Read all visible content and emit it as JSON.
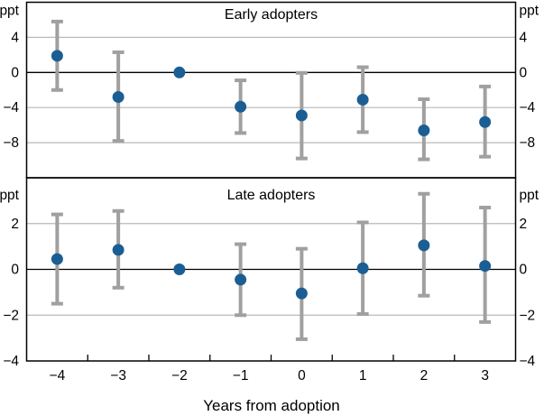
{
  "xlabel": "Years from adoption",
  "x_tick_labels": [
    "-4",
    "-3",
    "-2",
    "-1",
    "0",
    "1",
    "2",
    "3"
  ],
  "colors": {
    "dot": "#1b5e94",
    "error_bar": "#a0a0a0",
    "gridline": "#b9b9b9",
    "axis": "#000000",
    "background": "#ffffff"
  },
  "chart_data": [
    {
      "type": "scatter",
      "title": "Early adopters",
      "unit_label": "ppt",
      "x": [
        -4,
        -3,
        -2,
        -1,
        0,
        1,
        2,
        3
      ],
      "y": [
        1.9,
        -2.8,
        0,
        -3.9,
        -4.9,
        -3.1,
        -6.6,
        -5.65
      ],
      "ci_high": [
        5.8,
        2.3,
        null,
        -0.9,
        -0.05,
        0.6,
        -3.05,
        -1.6
      ],
      "ci_low": [
        -2.0,
        -7.8,
        null,
        -6.9,
        -9.8,
        -6.8,
        -9.9,
        -9.6
      ],
      "ylim": [
        -12,
        8
      ],
      "yticks": [
        4,
        0,
        -4,
        -8
      ],
      "ytick_labels": [
        "4",
        "0",
        "-4",
        "-8"
      ],
      "grid": true,
      "legend": "none"
    },
    {
      "type": "scatter",
      "title": "Late adopters",
      "unit_label": "ppt",
      "x": [
        -4,
        -3,
        -2,
        -1,
        0,
        1,
        2,
        3
      ],
      "y": [
        0.45,
        0.85,
        0,
        -0.45,
        -1.05,
        0.05,
        1.05,
        0.15
      ],
      "ci_high": [
        2.4,
        2.55,
        null,
        1.1,
        0.9,
        2.05,
        3.3,
        2.7
      ],
      "ci_low": [
        -1.5,
        -0.8,
        null,
        -2.0,
        -3.05,
        -1.95,
        -1.15,
        -2.3
      ],
      "ylim": [
        -4,
        4
      ],
      "yticks": [
        2,
        0,
        -2,
        -4
      ],
      "ytick_labels": [
        "2",
        "0",
        "-2",
        "-4"
      ],
      "grid": true,
      "legend": "none"
    }
  ]
}
